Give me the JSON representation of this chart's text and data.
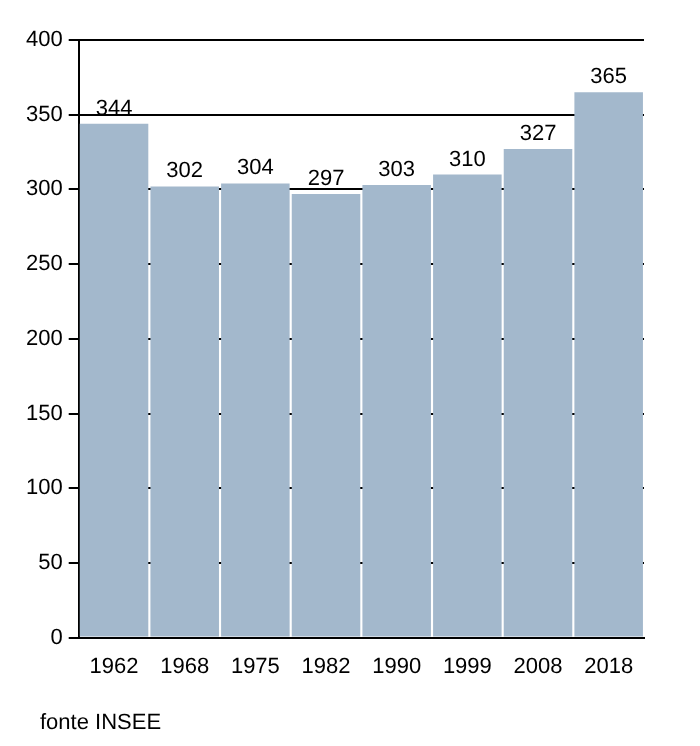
{
  "chart_data": {
    "type": "bar",
    "categories": [
      "1962",
      "1968",
      "1975",
      "1982",
      "1990",
      "1999",
      "2008",
      "2018"
    ],
    "values": [
      344,
      302,
      304,
      297,
      303,
      310,
      327,
      365
    ],
    "color": "#a3b8cc",
    "ylim": [
      0,
      400
    ],
    "yticks": [
      0,
      50,
      100,
      150,
      200,
      250,
      300,
      350,
      400
    ],
    "grid": "y",
    "data_labels": true,
    "annotations": [
      "fonte INSEE"
    ]
  }
}
